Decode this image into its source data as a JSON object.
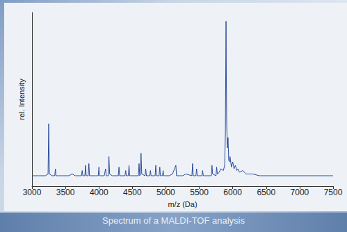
{
  "chart_data": {
    "type": "line",
    "title": "Spectrum of a MALDI-TOF analysis",
    "x_label": "m/z (Da)",
    "y_label": "rel. Intensity",
    "color": "#2b4c9b",
    "xlim": [
      3000,
      7500
    ],
    "xticks": [
      3000,
      3500,
      4000,
      4500,
      5000,
      5500,
      6000,
      6500,
      7000,
      7500
    ],
    "ylim": [
      0,
      100
    ],
    "grid": false,
    "tick_labels": "x",
    "x": [
      3000,
      3100,
      3200,
      3240,
      3250,
      3260,
      3300,
      3340,
      3350,
      3360,
      3450,
      3550,
      3600,
      3650,
      3740,
      3750,
      3760,
      3790,
      3800,
      3810,
      3840,
      3850,
      3860,
      3950,
      3990,
      4000,
      4010,
      4080,
      4100,
      4110,
      4140,
      4150,
      4160,
      4200,
      4290,
      4300,
      4310,
      4390,
      4400,
      4410,
      4440,
      4450,
      4460,
      4550,
      4590,
      4600,
      4610,
      4620,
      4630,
      4640,
      4690,
      4700,
      4710,
      4760,
      4770,
      4780,
      4840,
      4850,
      4860,
      4900,
      4910,
      4920,
      4950,
      4960,
      4970,
      5050,
      5100,
      5150,
      5160,
      5250,
      5300,
      5390,
      5400,
      5410,
      5450,
      5460,
      5470,
      5540,
      5550,
      5560,
      5600,
      5680,
      5690,
      5700,
      5750,
      5760,
      5770,
      5800,
      5820,
      5860,
      5880,
      5890,
      5900,
      5905,
      5910,
      5920,
      5930,
      5940,
      5950,
      5960,
      5980,
      6000,
      6020,
      6040,
      6060,
      6080,
      6100,
      6150,
      6200,
      6300,
      6400,
      6500,
      6700,
      6900,
      7100,
      7300,
      7500
    ],
    "values": [
      6,
      6,
      6,
      7,
      36,
      7,
      6,
      6,
      10,
      6,
      6,
      6,
      7,
      6,
      6,
      9,
      6,
      6,
      12,
      6,
      6,
      13,
      6,
      6,
      6,
      11,
      6,
      6,
      10,
      6,
      6,
      17,
      7,
      6,
      6,
      11,
      6,
      6,
      9,
      6,
      6,
      12,
      6,
      6,
      6,
      13,
      6,
      7,
      19,
      7,
      6,
      10,
      6,
      6,
      9,
      6,
      6,
      12,
      6,
      6,
      11,
      6,
      6,
      9,
      6,
      6,
      7,
      12,
      6,
      6,
      7,
      6,
      13,
      6,
      6,
      10,
      6,
      6,
      9,
      6,
      6,
      6,
      12,
      7,
      6,
      11,
      7,
      8,
      10,
      9,
      12,
      30,
      95,
      60,
      35,
      22,
      28,
      15,
      14,
      17,
      11,
      14,
      10,
      12,
      9,
      10,
      8,
      9,
      7,
      7,
      6,
      6,
      6,
      6,
      6,
      6,
      6
    ]
  }
}
